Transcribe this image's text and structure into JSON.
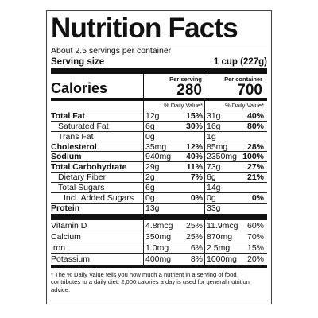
{
  "title": "Nutrition Facts",
  "servings": "About 2.5 servings per container",
  "serving_size": {
    "label": "Serving size",
    "value": "1 cup (227g)"
  },
  "calories": {
    "label": "Calories",
    "per_serving_header": "Per serving",
    "per_container_header": "Per container",
    "per_serving": "280",
    "per_container": "700"
  },
  "dv_headers": [
    "% Daily Value*",
    "% Daily Value*"
  ],
  "nutrients": [
    {
      "name": "Total Fat",
      "serving_amount": "12g",
      "serving_dv": "15%",
      "container_amount": "31g",
      "container_dv": "40%"
    },
    {
      "name": "Saturated Fat",
      "serving_amount": "6g",
      "serving_dv": "30%",
      "container_amount": "16g",
      "container_dv": "80%"
    },
    {
      "name": "Trans Fat",
      "serving_amount": "0g",
      "serving_dv": null,
      "container_amount": "1g",
      "container_dv": null
    },
    {
      "name": "Cholesterol",
      "serving_amount": "35mg",
      "serving_dv": "12%",
      "container_amount": "85mg",
      "container_dv": "28%"
    },
    {
      "name": "Sodium",
      "serving_amount": "940mg",
      "serving_dv": "40%",
      "container_amount": "2350mg",
      "container_dv": "100%"
    },
    {
      "name": "Total Carbohydrate",
      "serving_amount": "29g",
      "serving_dv": "11%",
      "container_amount": "73g",
      "container_dv": "27%"
    },
    {
      "name": "Dietary Fiber",
      "serving_amount": "2g",
      "serving_dv": "7%",
      "container_amount": "6g",
      "container_dv": "21%"
    },
    {
      "name": "Total Sugars",
      "serving_amount": "6g",
      "serving_dv": null,
      "container_amount": "14g",
      "container_dv": null
    },
    {
      "name": "Incl. Added Sugars",
      "serving_amount": "0g",
      "serving_dv": "0%",
      "container_amount": "0g",
      "container_dv": "0%"
    },
    {
      "name": "Protein",
      "serving_amount": "13g",
      "serving_dv": null,
      "container_amount": "33g",
      "container_dv": null
    }
  ],
  "vitamins": [
    {
      "name": "Vitamin D",
      "serving_amount": "4.8mcg",
      "serving_dv": "25%",
      "container_amount": "11.9mcg",
      "container_dv": "60%"
    },
    {
      "name": "Calcium",
      "serving_amount": "350mg",
      "serving_dv": "25%",
      "container_amount": "870mg",
      "container_dv": "70%"
    },
    {
      "name": "Iron",
      "serving_amount": "1.0mg",
      "serving_dv": "6%",
      "container_amount": "2.5mg",
      "container_dv": "15%"
    },
    {
      "name": "Potassium",
      "serving_amount": "400mg",
      "serving_dv": "8%",
      "container_amount": "1000mg",
      "container_dv": "20%"
    }
  ],
  "footnote": "* The % Daily Value tells you how much a nutrient in a serving of food contributes to a daily diet. 2,000 calories a day is used for general nutrition advice."
}
